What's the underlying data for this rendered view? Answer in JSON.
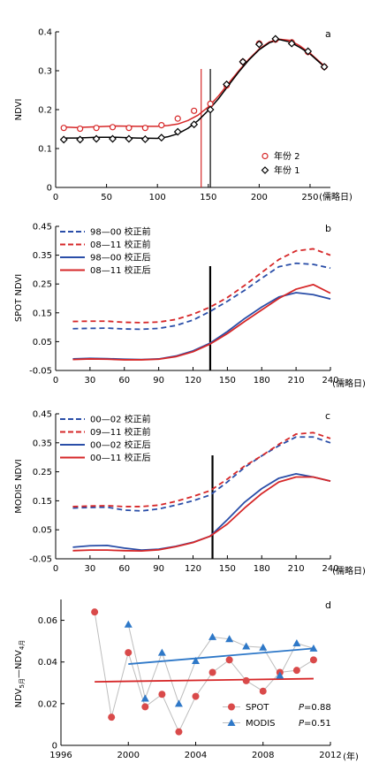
{
  "chart_data": [
    {
      "panel": "a",
      "type": "line",
      "ylabel": "NDVI",
      "xlabel": "(儒略日)",
      "xlim": [
        0,
        270
      ],
      "ylim": [
        0,
        0.4
      ],
      "xticks": [
        0,
        50,
        100,
        150,
        200,
        250
      ],
      "yticks": [
        0,
        0.1,
        0.2,
        0.3,
        0.4
      ],
      "xtick_labels": [
        "0",
        "50",
        "100",
        "150",
        "200",
        "250"
      ],
      "ytick_labels": [
        "0",
        "0.1",
        "0.2",
        "0.3",
        "0.4"
      ],
      "legend_position": "bottom-right",
      "vlines": [
        {
          "x": 143,
          "color": "#d62728"
        },
        {
          "x": 152,
          "color": "#000000"
        }
      ],
      "series": [
        {
          "name": "年份 2",
          "style": "points",
          "marker": "circle",
          "color": "#d62728",
          "x": [
            8,
            24,
            40,
            56,
            72,
            88,
            104,
            120,
            136,
            152,
            168,
            184,
            200,
            216,
            232,
            248,
            264
          ],
          "y": [
            0.153,
            0.151,
            0.153,
            0.155,
            0.153,
            0.153,
            0.16,
            0.177,
            0.197,
            0.215,
            0.262,
            0.323,
            0.37,
            0.38,
            0.373,
            0.348,
            0.31
          ]
        },
        {
          "name": "年份 1",
          "style": "points",
          "marker": "diamond",
          "color": "#000000",
          "x": [
            8,
            24,
            40,
            56,
            72,
            88,
            104,
            120,
            136,
            152,
            168,
            184,
            200,
            216,
            232,
            248,
            264
          ],
          "y": [
            0.123,
            0.123,
            0.125,
            0.125,
            0.125,
            0.124,
            0.128,
            0.143,
            0.162,
            0.2,
            0.265,
            0.323,
            0.368,
            0.382,
            0.37,
            0.35,
            0.31
          ]
        },
        {
          "name": "",
          "style": "line",
          "color": "#d62728",
          "x": [
            10,
            20,
            40,
            60,
            80,
            100,
            110,
            120,
            130,
            140,
            150,
            160,
            170,
            180,
            190,
            200,
            210,
            220,
            230,
            240,
            250,
            265
          ],
          "y": [
            0.155,
            0.154,
            0.156,
            0.158,
            0.157,
            0.157,
            0.159,
            0.163,
            0.172,
            0.186,
            0.207,
            0.235,
            0.268,
            0.3,
            0.33,
            0.356,
            0.374,
            0.381,
            0.378,
            0.364,
            0.345,
            0.31
          ]
        },
        {
          "name": "",
          "style": "line",
          "color": "#000000",
          "x": [
            10,
            20,
            40,
            60,
            80,
            100,
            110,
            120,
            130,
            140,
            150,
            160,
            170,
            180,
            190,
            200,
            210,
            220,
            230,
            240,
            250,
            265
          ],
          "y": [
            0.127,
            0.127,
            0.129,
            0.129,
            0.127,
            0.126,
            0.13,
            0.138,
            0.152,
            0.172,
            0.198,
            0.228,
            0.263,
            0.297,
            0.328,
            0.354,
            0.372,
            0.38,
            0.374,
            0.36,
            0.343,
            0.308
          ]
        }
      ]
    },
    {
      "panel": "b",
      "type": "line",
      "ylabel": "SPOT NDVI",
      "xlabel": "(儒略日)",
      "xlim": [
        0,
        240
      ],
      "ylim": [
        -0.05,
        0.45
      ],
      "xticks": [
        0,
        30,
        60,
        90,
        120,
        150,
        180,
        210,
        240
      ],
      "yticks": [
        -0.05,
        0.05,
        0.15,
        0.25,
        0.35,
        0.45
      ],
      "xtick_labels": [
        "0",
        "30",
        "60",
        "90",
        "120",
        "150",
        "180",
        "210",
        "240"
      ],
      "ytick_labels": [
        "-0.05",
        "0.05",
        "0.15",
        "0.25",
        "0.35",
        "0.45"
      ],
      "legend_position": "top-left",
      "vlines": [
        {
          "x": 135,
          "color": "#000000"
        }
      ],
      "series": [
        {
          "name": "98—00  校正前",
          "color": "#2a4ea8",
          "dash": true,
          "x": [
            15,
            30,
            45,
            60,
            75,
            90,
            105,
            120,
            135,
            150,
            165,
            180,
            195,
            210,
            225,
            240
          ],
          "y": [
            0.095,
            0.096,
            0.097,
            0.094,
            0.093,
            0.096,
            0.106,
            0.125,
            0.155,
            0.19,
            0.228,
            0.27,
            0.31,
            0.322,
            0.318,
            0.305
          ]
        },
        {
          "name": "08—11  校正前",
          "color": "#d62728",
          "dash": true,
          "x": [
            15,
            30,
            45,
            60,
            75,
            90,
            105,
            120,
            135,
            150,
            165,
            180,
            195,
            210,
            225,
            240
          ],
          "y": [
            0.12,
            0.121,
            0.121,
            0.117,
            0.116,
            0.118,
            0.127,
            0.145,
            0.17,
            0.203,
            0.245,
            0.29,
            0.335,
            0.365,
            0.372,
            0.35
          ]
        },
        {
          "name": "98—00  校正后",
          "color": "#2a4ea8",
          "dash": false,
          "x": [
            15,
            30,
            45,
            60,
            75,
            90,
            105,
            120,
            135,
            150,
            165,
            180,
            195,
            210,
            225,
            240
          ],
          "y": [
            -0.01,
            -0.008,
            -0.009,
            -0.011,
            -0.012,
            -0.01,
            0.0,
            0.018,
            0.045,
            0.085,
            0.13,
            0.17,
            0.205,
            0.22,
            0.213,
            0.198
          ]
        },
        {
          "name": "08—11  校正后",
          "color": "#d62728",
          "dash": false,
          "x": [
            15,
            30,
            45,
            60,
            75,
            90,
            105,
            120,
            135,
            150,
            165,
            180,
            195,
            210,
            225,
            240
          ],
          "y": [
            -0.012,
            -0.01,
            -0.011,
            -0.013,
            -0.013,
            -0.011,
            -0.002,
            0.015,
            0.042,
            0.078,
            0.12,
            0.16,
            0.2,
            0.232,
            0.248,
            0.218
          ]
        }
      ]
    },
    {
      "panel": "c",
      "type": "line",
      "ylabel": "MODIS NDVI",
      "xlabel": "(儒略日)",
      "xlim": [
        0,
        240
      ],
      "ylim": [
        -0.05,
        0.45
      ],
      "xticks": [
        0,
        30,
        60,
        90,
        120,
        150,
        180,
        210,
        240
      ],
      "yticks": [
        -0.05,
        0.05,
        0.15,
        0.25,
        0.35,
        0.45
      ],
      "xtick_labels": [
        "0",
        "30",
        "60",
        "90",
        "120",
        "150",
        "180",
        "210",
        "240"
      ],
      "ytick_labels": [
        "-0.05",
        "0.05",
        "0.15",
        "0.25",
        "0.35",
        "0.45"
      ],
      "legend_position": "top-left",
      "vlines": [
        {
          "x": 137,
          "color": "#000000"
        }
      ],
      "series": [
        {
          "name": "00—02  校正前",
          "color": "#2a4ea8",
          "dash": true,
          "x": [
            15,
            30,
            45,
            60,
            75,
            90,
            105,
            120,
            135,
            150,
            165,
            180,
            195,
            210,
            225,
            240
          ],
          "y": [
            0.125,
            0.127,
            0.128,
            0.118,
            0.115,
            0.122,
            0.135,
            0.15,
            0.17,
            0.215,
            0.265,
            0.305,
            0.34,
            0.37,
            0.37,
            0.35
          ]
        },
        {
          "name": "09—11  校正前",
          "color": "#d62728",
          "dash": true,
          "x": [
            15,
            30,
            45,
            60,
            75,
            90,
            105,
            120,
            135,
            150,
            165,
            180,
            195,
            210,
            225,
            240
          ],
          "y": [
            0.13,
            0.132,
            0.133,
            0.13,
            0.13,
            0.135,
            0.148,
            0.165,
            0.185,
            0.225,
            0.27,
            0.305,
            0.345,
            0.38,
            0.385,
            0.365
          ]
        },
        {
          "name": "00—02  校正后",
          "color": "#2a4ea8",
          "dash": false,
          "x": [
            15,
            30,
            45,
            60,
            75,
            90,
            105,
            120,
            135,
            150,
            165,
            180,
            195,
            210,
            225,
            240
          ],
          "y": [
            -0.01,
            -0.005,
            -0.004,
            -0.013,
            -0.02,
            -0.017,
            -0.007,
            0.007,
            0.028,
            0.085,
            0.145,
            0.192,
            0.228,
            0.243,
            0.232,
            0.218
          ]
        },
        {
          "name": "00—11  校正后",
          "color": "#d62728",
          "dash": false,
          "x": [
            15,
            30,
            45,
            60,
            75,
            90,
            105,
            120,
            135,
            150,
            165,
            180,
            195,
            210,
            225,
            240
          ],
          "y": [
            -0.022,
            -0.02,
            -0.02,
            -0.022,
            -0.023,
            -0.019,
            -0.008,
            0.006,
            0.028,
            0.07,
            0.125,
            0.175,
            0.215,
            0.232,
            0.232,
            0.218
          ]
        }
      ]
    },
    {
      "panel": "d",
      "type": "scatter",
      "ylabel_parts": [
        "NDV",
        "5月",
        "—NDV",
        "4月"
      ],
      "xlabel": "(年)",
      "xlim": [
        1996,
        2012
      ],
      "ylim": [
        0,
        0.07
      ],
      "xticks": [
        1996,
        2000,
        2004,
        2008,
        2012
      ],
      "yticks": [
        0,
        0.02,
        0.04,
        0.06
      ],
      "xtick_labels": [
        "1996",
        "2000",
        "2004",
        "2008",
        "2012"
      ],
      "ytick_labels": [
        "0",
        "0.02",
        "0.04",
        "0.06"
      ],
      "legend_position": "bottom-right",
      "series": [
        {
          "name": "SPOT",
          "marker": "circle",
          "color": "#d94a4a",
          "p_prefix": "P",
          "p_value": "=0.88",
          "x": [
            1998,
            1999,
            2000,
            2001,
            2002,
            2003,
            2004,
            2005,
            2006,
            2007,
            2008,
            2009,
            2010,
            2011
          ],
          "y": [
            0.064,
            0.0135,
            0.0445,
            0.0185,
            0.0245,
            0.0065,
            0.0235,
            0.035,
            0.041,
            0.031,
            0.026,
            0.035,
            0.036,
            0.041
          ],
          "trend": {
            "x": [
              1998,
              2011
            ],
            "y": [
              0.0305,
              0.032
            ],
            "color": "#d62728"
          }
        },
        {
          "name": "MODIS",
          "marker": "triangle",
          "color": "#2e78c8",
          "p_prefix": "P",
          "p_value": "=0.51",
          "x": [
            2000,
            2001,
            2002,
            2003,
            2004,
            2005,
            2006,
            2007,
            2008,
            2009,
            2010,
            2011
          ],
          "y": [
            0.058,
            0.0225,
            0.0445,
            0.02,
            0.0405,
            0.052,
            0.051,
            0.0475,
            0.047,
            0.0335,
            0.049,
            0.0465
          ],
          "trend": {
            "x": [
              2000,
              2011
            ],
            "y": [
              0.039,
              0.0465
            ],
            "color": "#2e78c8"
          }
        }
      ]
    }
  ]
}
